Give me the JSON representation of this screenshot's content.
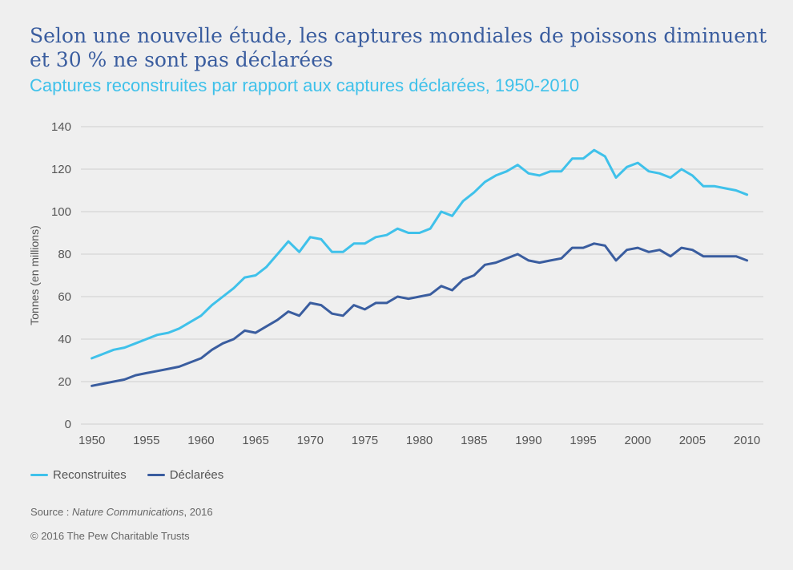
{
  "header": {
    "title": "Selon une nouvelle étude, les captures mondiales de poissons diminuent et 30 % ne sont pas déclarées",
    "subtitle": "Captures reconstruites par rapport aux captures déclarées, 1950-2010"
  },
  "footer": {
    "source_prefix": "Source : ",
    "source_name": "Nature Communications",
    "source_suffix": ", 2016",
    "copyright": "© 2016 The Pew Charitable Trusts"
  },
  "colors": {
    "reconstructed": "#3fc1ea",
    "reported": "#3a5d9f",
    "grid": "#cfcfcf",
    "axis_text": "#555555"
  },
  "chart_data": {
    "type": "line",
    "ylabel": "Tonnes (en millions)",
    "xlabel": "",
    "xlim": [
      1949,
      2011.5
    ],
    "ylim": [
      0,
      140
    ],
    "yticks": [
      0,
      20,
      40,
      60,
      80,
      100,
      120,
      140
    ],
    "xticks": [
      1950,
      1955,
      1960,
      1965,
      1970,
      1975,
      1980,
      1985,
      1990,
      1995,
      2000,
      2005,
      2010
    ],
    "grid": true,
    "legend_position": "bottom-left",
    "x": [
      1950,
      1951,
      1952,
      1953,
      1954,
      1955,
      1956,
      1957,
      1958,
      1959,
      1960,
      1961,
      1962,
      1963,
      1964,
      1965,
      1966,
      1967,
      1968,
      1969,
      1970,
      1971,
      1972,
      1973,
      1974,
      1975,
      1976,
      1977,
      1978,
      1979,
      1980,
      1981,
      1982,
      1983,
      1984,
      1985,
      1986,
      1987,
      1988,
      1989,
      1990,
      1991,
      1992,
      1993,
      1994,
      1995,
      1996,
      1997,
      1998,
      1999,
      2000,
      2001,
      2002,
      2003,
      2004,
      2005,
      2006,
      2007,
      2008,
      2009,
      2010
    ],
    "series": [
      {
        "name": "Reconstruites",
        "values": [
          31,
          33,
          35,
          36,
          38,
          40,
          42,
          43,
          45,
          48,
          51,
          56,
          60,
          64,
          69,
          70,
          74,
          80,
          86,
          81,
          88,
          87,
          81,
          81,
          85,
          85,
          88,
          89,
          92,
          90,
          90,
          92,
          100,
          98,
          105,
          109,
          114,
          117,
          119,
          122,
          118,
          117,
          119,
          119,
          125,
          125,
          129,
          126,
          116,
          121,
          123,
          119,
          118,
          116,
          120,
          117,
          112,
          112,
          111,
          110,
          108
        ]
      },
      {
        "name": "Déclarées",
        "values": [
          18,
          19,
          20,
          21,
          23,
          24,
          25,
          26,
          27,
          29,
          31,
          35,
          38,
          40,
          44,
          43,
          46,
          49,
          53,
          51,
          57,
          56,
          52,
          51,
          56,
          54,
          57,
          57,
          60,
          59,
          60,
          61,
          65,
          63,
          68,
          70,
          75,
          76,
          78,
          80,
          77,
          76,
          77,
          78,
          83,
          83,
          85,
          84,
          77,
          82,
          83,
          81,
          82,
          79,
          83,
          82,
          79,
          79,
          79,
          79,
          77
        ]
      }
    ]
  }
}
